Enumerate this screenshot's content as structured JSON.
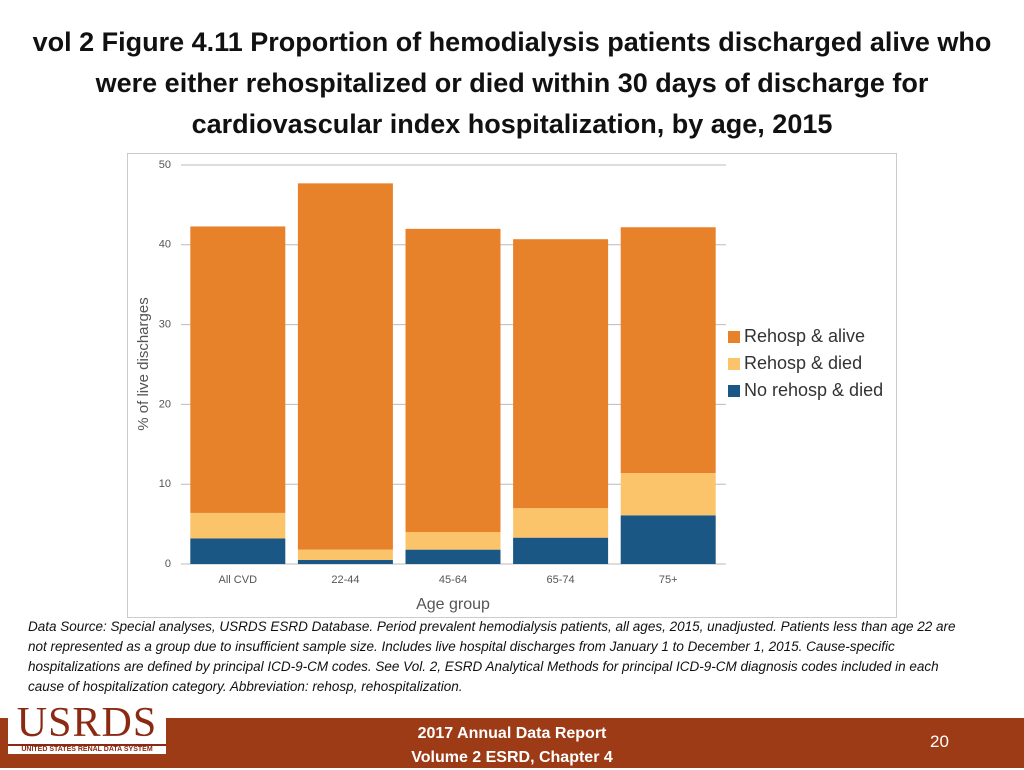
{
  "chart_data": {
    "type": "stacked_bar",
    "title": "vol 2 Figure 4.11 Proportion of hemodialysis patients discharged alive who were either rehospitalized or died within 30 days of discharge for cardiovascular index hospitalization, by age, 2015",
    "x_label": "Age group",
    "y_label": "% of live discharges",
    "categories": [
      "All CVD",
      "22-44",
      "45-64",
      "65-74",
      "75+"
    ],
    "series": [
      {
        "name": "Rehosp & alive",
        "color": "#e8822a",
        "values": [
          35.9,
          45.9,
          38.0,
          33.7,
          30.8
        ]
      },
      {
        "name": "Rehosp & died",
        "color": "#fbc46b",
        "values": [
          3.2,
          1.3,
          2.2,
          3.7,
          5.3
        ]
      },
      {
        "name": "No rehosp & died",
        "color": "#1a5784",
        "values": [
          3.2,
          0.5,
          1.8,
          3.3,
          6.1
        ]
      }
    ],
    "ylim": [
      0,
      50
    ],
    "yticks": [
      0,
      10,
      20,
      30,
      40,
      50
    ],
    "grid": true,
    "legend": "right"
  },
  "slide": {
    "note": "Data Source: Special analyses, USRDS ESRD Database. Period prevalent hemodialysis patients, all ages, 2015, unadjusted. Patients less than age 22 are not represented as a group due to insufficient sample size. Includes live hospital discharges from January 1 to December 1, 2015. Cause-specific hospitalizations are defined by principal ICD-9-CM codes. See Vol. 2, ESRD Analytical Methods for principal ICD-9-CM diagnosis codes included in each cause of hospitalization category. Abbreviation: rehosp, rehospitalization.",
    "logo": "USRDS",
    "logo_sub": "UNITED STATES RENAL DATA SYSTEM",
    "footer": [
      "2017 Annual Data Report",
      "Volume 2 ESRD, Chapter 4"
    ],
    "page": "20"
  }
}
